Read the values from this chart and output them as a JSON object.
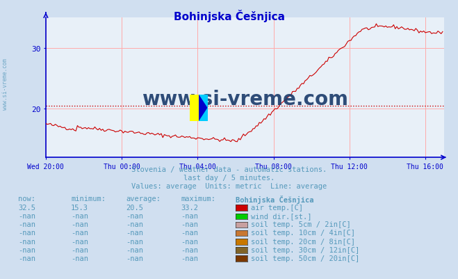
{
  "title": "Bohinjska Češnjica",
  "bg_color": "#d0dff0",
  "plot_bg_color": "#e8f0f8",
  "line_color": "#cc0000",
  "avg_line_color": "#cc0000",
  "avg_value": 20.5,
  "grid_color": "#ffaaaa",
  "axis_color": "#0000cc",
  "tick_color": "#0000cc",
  "title_color": "#0000cc",
  "text_color": "#5599bb",
  "x_ticks": [
    "Wed 20:00",
    "Thu 00:00",
    "Thu 04:00",
    "Thu 08:00",
    "Thu 12:00",
    "Thu 16:00"
  ],
  "x_tick_positions": [
    0,
    48,
    96,
    144,
    192,
    240
  ],
  "y_ticks": [
    20,
    30
  ],
  "ylim": [
    12,
    35
  ],
  "xlim": [
    0,
    252
  ],
  "subtitle1": "Slovenia / weather data - automatic stations.",
  "subtitle2": "last day / 5 minutes.",
  "subtitle3": "Values: average  Units: metric  Line: average",
  "table_header": [
    "now:",
    "minimum:",
    "average:",
    "maximum:",
    "Bohinjska Češnjica"
  ],
  "table_rows": [
    [
      "32.5",
      "15.3",
      "20.5",
      "33.2",
      "#cc0000",
      "air temp.[C]"
    ],
    [
      "-nan",
      "-nan",
      "-nan",
      "-nan",
      "#00cc00",
      "wind dir.[st.]"
    ],
    [
      "-nan",
      "-nan",
      "-nan",
      "-nan",
      "#c8a0a0",
      "soil temp. 5cm / 2in[C]"
    ],
    [
      "-nan",
      "-nan",
      "-nan",
      "-nan",
      "#c87832",
      "soil temp. 10cm / 4in[C]"
    ],
    [
      "-nan",
      "-nan",
      "-nan",
      "-nan",
      "#c87800",
      "soil temp. 20cm / 8in[C]"
    ],
    [
      "-nan",
      "-nan",
      "-nan",
      "-nan",
      "#806428",
      "soil temp. 30cm / 12in[C]"
    ],
    [
      "-nan",
      "-nan",
      "-nan",
      "-nan",
      "#7a3800",
      "soil temp. 50cm / 20in[C]"
    ]
  ],
  "watermark": "www.si-vreme.com",
  "watermark_color": "#1a3a6a",
  "logo_yellow": "#ffff00",
  "logo_cyan": "#00ccff",
  "logo_blue": "#0000cc",
  "left_label": "www.si-vreme.com"
}
